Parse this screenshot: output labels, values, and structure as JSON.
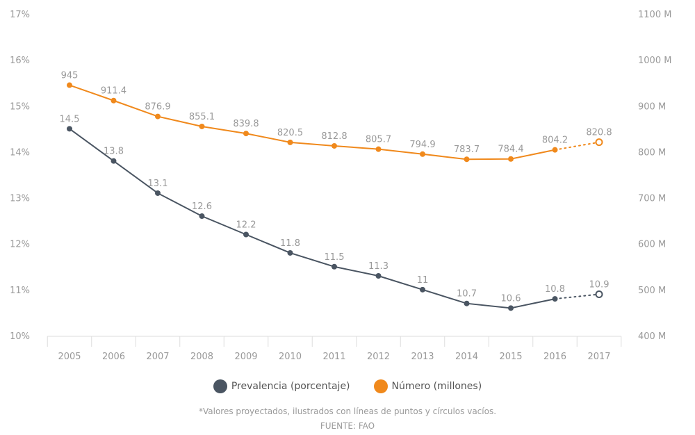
{
  "chart_data": {
    "type": "line",
    "categories": [
      "2005",
      "2006",
      "2007",
      "2008",
      "2009",
      "2010",
      "2011",
      "2012",
      "2013",
      "2014",
      "2015",
      "2016",
      "2017"
    ],
    "y_left": {
      "ticks": [
        "10%",
        "11%",
        "12%",
        "13%",
        "14%",
        "15%",
        "16%",
        "17%"
      ],
      "range": [
        10,
        17
      ]
    },
    "y_right": {
      "ticks": [
        "400 M",
        "500 M",
        "600 M",
        "700 M",
        "800 M",
        "900 M",
        "1000 M",
        "1100 M"
      ],
      "range": [
        400,
        1100
      ]
    },
    "grid": false,
    "legend_placement": "bottom",
    "series": [
      {
        "name": "Prevalencia (porcentaje)",
        "axis": "left",
        "color": "#4a5562",
        "values": [
          14.5,
          13.8,
          13.1,
          12.6,
          12.2,
          11.8,
          11.5,
          11.3,
          11,
          10.7,
          10.6,
          10.8,
          10.9
        ],
        "labels": [
          "14.5",
          "13.8",
          "13.1",
          "12.6",
          "12.2",
          "11.8",
          "11.5",
          "11.3",
          "11",
          "10.7",
          "10.6",
          "10.8",
          "10.9"
        ],
        "projected_from_index": 12
      },
      {
        "name": "Número (millones)",
        "axis": "right",
        "color": "#f0891c",
        "values": [
          945,
          911.4,
          876.9,
          855.1,
          839.8,
          820.5,
          812.8,
          805.7,
          794.9,
          783.7,
          784.4,
          804.2,
          820.8
        ],
        "labels": [
          "945",
          "911.4",
          "876.9",
          "855.1",
          "839.8",
          "820.5",
          "812.8",
          "805.7",
          "794.9",
          "783.7",
          "784.4",
          "804.2",
          "820.8"
        ],
        "projected_from_index": 12
      }
    ]
  },
  "note": "*Valores proyectados, ilustrados con líneas de puntos y círculos vacíos.",
  "source": "FUENTE: FAO"
}
